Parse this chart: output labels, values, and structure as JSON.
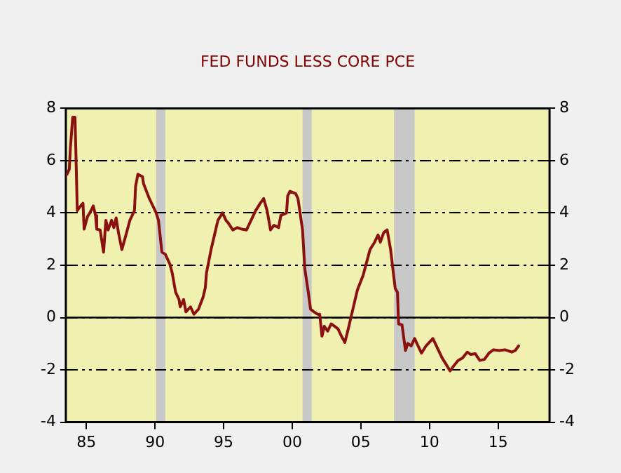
{
  "chart_data": {
    "type": "line",
    "title": "FED FUNDS LESS CORE PCE",
    "x": [
      "1984-02",
      "1984-04",
      "1984-05",
      "1984-07",
      "1984-09",
      "1984-10",
      "1984-11",
      "1985-02",
      "1985-04",
      "1985-05",
      "1985-08",
      "1985-10",
      "1986-01",
      "1986-03",
      "1986-04",
      "1986-07",
      "1986-10",
      "1986-12",
      "1987-02",
      "1987-05",
      "1987-07",
      "1987-09",
      "1987-11",
      "1988-02",
      "1988-05",
      "1988-09",
      "1989-01",
      "1989-02",
      "1989-04",
      "1989-08",
      "1989-09",
      "1990-02",
      "1990-04",
      "1990-08",
      "1990-10",
      "1991-01",
      "1991-04",
      "1991-08",
      "1991-10",
      "1992-01",
      "1992-04",
      "1992-05",
      "1992-08",
      "1992-10",
      "1993-02",
      "1993-05",
      "1993-09",
      "1994-01",
      "1994-03",
      "1994-04",
      "1994-08",
      "1994-11",
      "1995-02",
      "1995-06",
      "1995-09",
      "1995-11",
      "1996-03",
      "1996-07",
      "1996-11",
      "1997-03",
      "1997-07",
      "1997-11",
      "1998-03",
      "1998-06",
      "1998-09",
      "1998-12",
      "1999-03",
      "1999-07",
      "1999-09",
      "2000-02",
      "2000-03",
      "2000-05",
      "2000-10",
      "2000-12",
      "2001-04",
      "2001-06",
      "2001-09",
      "2001-11",
      "2002-02",
      "2002-05",
      "2002-07",
      "2002-09",
      "2002-11",
      "2003-02",
      "2003-05",
      "2003-08",
      "2003-11",
      "2004-02",
      "2004-05",
      "2004-08",
      "2004-12",
      "2005-04",
      "2005-09",
      "2005-11",
      "2006-03",
      "2006-07",
      "2006-10",
      "2006-12",
      "2007-03",
      "2007-06",
      "2007-09",
      "2007-11",
      "2008-01",
      "2008-03",
      "2008-04",
      "2008-07",
      "2008-10",
      "2008-12",
      "2009-03",
      "2009-06",
      "2009-09",
      "2009-12",
      "2010-04",
      "2010-06",
      "2010-10",
      "2011-02",
      "2011-06",
      "2011-10",
      "2012-01",
      "2012-04",
      "2012-08",
      "2012-12",
      "2013-04",
      "2013-07",
      "2013-11",
      "2014-03",
      "2014-07",
      "2014-11",
      "2015-03",
      "2015-08",
      "2016-01",
      "2016-07",
      "2016-10",
      "2017-01"
    ],
    "series": [
      {
        "color": "#8b1010",
        "values": [
          5.48,
          5.67,
          6.5,
          7.66,
          7.66,
          5.95,
          4.09,
          4.27,
          4.37,
          3.38,
          3.87,
          4.0,
          4.27,
          3.9,
          3.38,
          3.35,
          2.5,
          3.72,
          3.35,
          3.72,
          3.44,
          3.81,
          3.25,
          2.6,
          3.07,
          3.72,
          4.09,
          5.02,
          5.48,
          5.39,
          5.11,
          4.55,
          4.37,
          4.0,
          3.72,
          2.5,
          2.42,
          2.04,
          1.71,
          0.97,
          0.69,
          0.41,
          0.69,
          0.22,
          0.41,
          0.13,
          0.32,
          0.78,
          1.15,
          1.71,
          2.6,
          3.16,
          3.72,
          4.0,
          3.72,
          3.62,
          3.35,
          3.44,
          3.38,
          3.35,
          3.72,
          4.09,
          4.37,
          4.55,
          4.09,
          3.35,
          3.53,
          3.44,
          3.9,
          4.0,
          4.65,
          4.83,
          4.74,
          4.55,
          3.35,
          1.86,
          0.97,
          0.32,
          0.22,
          0.13,
          0.13,
          -0.71,
          -0.33,
          -0.52,
          -0.24,
          -0.33,
          -0.43,
          -0.71,
          -0.95,
          -0.43,
          0.32,
          1.06,
          1.62,
          1.95,
          2.6,
          2.88,
          3.16,
          2.88,
          3.25,
          3.35,
          2.6,
          1.86,
          1.12,
          0.97,
          -0.24,
          -0.28,
          -1.26,
          -0.99,
          -1.08,
          -0.8,
          -1.08,
          -1.36,
          -1.08,
          -0.99,
          -0.8,
          -1.17,
          -1.54,
          -1.82,
          -2.04,
          -1.86,
          -1.64,
          -1.54,
          -1.32,
          -1.41,
          -1.38,
          -1.64,
          -1.6,
          -1.36,
          -1.23,
          -1.26,
          -1.23,
          -1.32,
          -1.26,
          -1.08
        ]
      }
    ],
    "xlim": [
      "1984-01",
      "2019-04"
    ],
    "xticks": [
      {
        "value": "1985-07",
        "label": "85"
      },
      {
        "value": "1990-07",
        "label": "90"
      },
      {
        "value": "1995-07",
        "label": "95"
      },
      {
        "value": "2000-07",
        "label": "00"
      },
      {
        "value": "2005-07",
        "label": "05"
      },
      {
        "value": "2010-07",
        "label": "10"
      },
      {
        "value": "2015-07",
        "label": "15"
      }
    ],
    "ylim": [
      -4,
      8
    ],
    "yticks": [
      -4,
      -2,
      0,
      2,
      4,
      6,
      8
    ],
    "y2lim": [
      -4,
      8
    ],
    "y2ticks": [
      -4,
      -2,
      0,
      2,
      4,
      6,
      8
    ],
    "ref_lines": [
      {
        "axis": "y",
        "value": 0,
        "color": "#000000",
        "line_style": "solid"
      }
    ],
    "bands": [
      {
        "axis": "x",
        "from": "1990-08",
        "to": "1991-04",
        "color": "#c8c8c8"
      },
      {
        "axis": "x",
        "from": "2001-04",
        "to": "2001-12",
        "color": "#c8c8c8"
      },
      {
        "axis": "x",
        "from": "2007-12",
        "to": "2009-06",
        "color": "#c8c8c8"
      }
    ],
    "grid": "y",
    "legend": false,
    "line_style": "solid"
  }
}
